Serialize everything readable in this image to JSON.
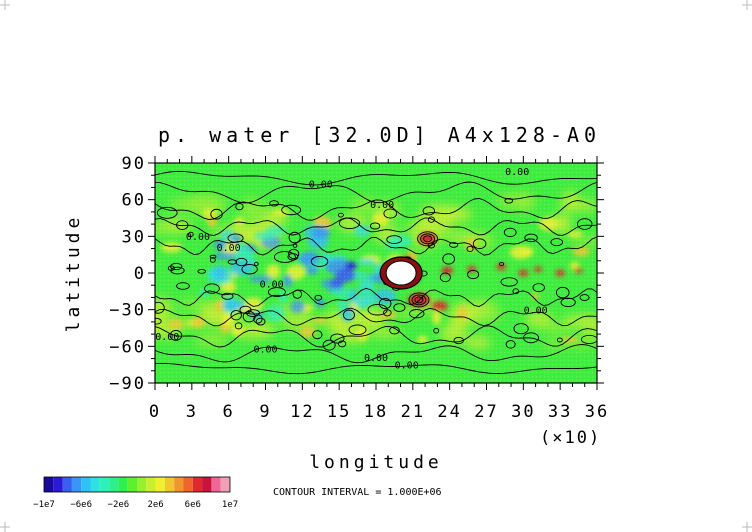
{
  "chart_data": {
    "type": "heatmap",
    "title": "p. water [32.0D]  A4x128-A0",
    "xlabel": "longitude",
    "xlabel_multiplier": "(×10)",
    "ylabel": "latitude",
    "x_ticks": [
      "0",
      "3",
      "6",
      "9",
      "12",
      "15",
      "18",
      "21",
      "24",
      "27",
      "30",
      "33",
      "36"
    ],
    "y_ticks": [
      "90",
      "60",
      "30",
      "0",
      "−30",
      "−60",
      "−90"
    ],
    "xlim": [
      0,
      360
    ],
    "ylim": [
      -90,
      90
    ],
    "contour_labels": [
      {
        "text": "0.00",
        "lon": 295,
        "lat": 80
      },
      {
        "text": "0.00",
        "lon": 135,
        "lat": 70
      },
      {
        "text": "0.00",
        "lon": 185,
        "lat": 53
      },
      {
        "text": "0.00",
        "lon": 35,
        "lat": 27
      },
      {
        "text": "0.00",
        "lon": 60,
        "lat": 18
      },
      {
        "text": "0.00",
        "lon": 95,
        "lat": -12
      },
      {
        "text": "0.00",
        "lon": 310,
        "lat": -33
      },
      {
        "text": "0.00",
        "lon": 10,
        "lat": -55
      },
      {
        "text": "0.00",
        "lon": 90,
        "lat": -65
      },
      {
        "text": "0.00",
        "lon": 180,
        "lat": -72
      },
      {
        "text": "0.00",
        "lon": 205,
        "lat": -78
      }
    ],
    "colorbar": {
      "colors": [
        "#1a0a9c",
        "#2a1ad8",
        "#3a5ef0",
        "#3a96f5",
        "#2ec2f5",
        "#2ee0e0",
        "#2ef0b8",
        "#2ef08a",
        "#30f050",
        "#5cf02e",
        "#96f02e",
        "#c8f02e",
        "#f0f02e",
        "#f0c82e",
        "#f0962e",
        "#f0642e",
        "#e0282e",
        "#c8143c",
        "#f06496",
        "#f0a0b4"
      ],
      "tick_labels": [
        "−1e7",
        "−6e6",
        "−2e6",
        "2e6",
        "6e6",
        "1e7"
      ]
    },
    "contour_interval": "CONTOUR INTERVAL = 1.000E+06"
  }
}
